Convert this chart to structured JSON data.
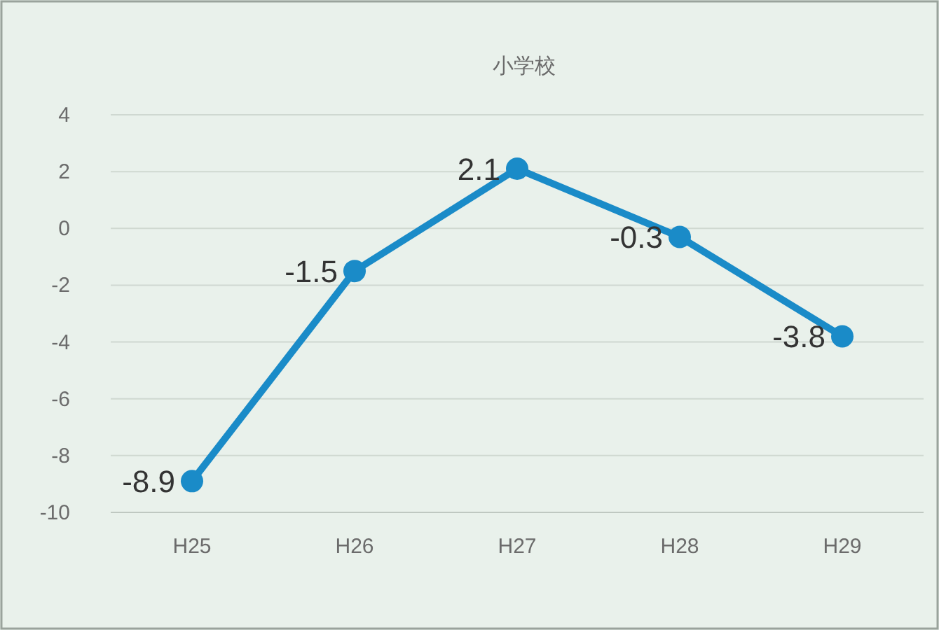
{
  "chart_data": {
    "type": "line",
    "title": "小学校",
    "categories": [
      "H25",
      "H26",
      "H27",
      "H28",
      "H29"
    ],
    "series": [
      {
        "color": "#1a8bc8",
        "values": [
          -8.9,
          -1.5,
          2.1,
          -0.3,
          -3.8
        ]
      }
    ],
    "ylim": [
      -10,
      4
    ],
    "yticks": [
      -10,
      -8,
      -6,
      -4,
      -2,
      0,
      2,
      4
    ],
    "grid": "y",
    "marker": "circle",
    "line_style": "solid",
    "data_labels": true
  }
}
